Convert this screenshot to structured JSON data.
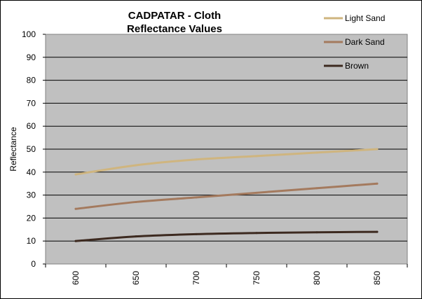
{
  "chart_data": {
    "type": "line",
    "title_lines": [
      "CADPATAR - Cloth",
      "Reflectance Values"
    ],
    "xlabel": "",
    "ylabel": "Reflectance",
    "x": [
      600,
      650,
      700,
      750,
      800,
      850
    ],
    "x_tick_labels": [
      "600",
      "650",
      "700",
      "750",
      "800",
      "850"
    ],
    "ylim": [
      0,
      100
    ],
    "y_ticks": [
      0,
      10,
      20,
      30,
      40,
      50,
      60,
      70,
      80,
      90,
      100
    ],
    "y_tick_labels": [
      "0",
      "10",
      "20",
      "30",
      "40",
      "50",
      "60",
      "70",
      "80",
      "90",
      "100"
    ],
    "grid": "horizontal",
    "plot_background": "#c0c0c0",
    "legend_position": "top-right",
    "series": [
      {
        "name": "Light Sand",
        "color": "#cfb57f",
        "values": [
          39,
          43,
          45.5,
          47,
          48.5,
          50
        ]
      },
      {
        "name": "Dark Sand",
        "color": "#a47a5e",
        "values": [
          24,
          27,
          29,
          31,
          33,
          35
        ]
      },
      {
        "name": "Brown",
        "color": "#3d2a20",
        "values": [
          10,
          12,
          13,
          13.5,
          13.8,
          14
        ]
      }
    ]
  }
}
